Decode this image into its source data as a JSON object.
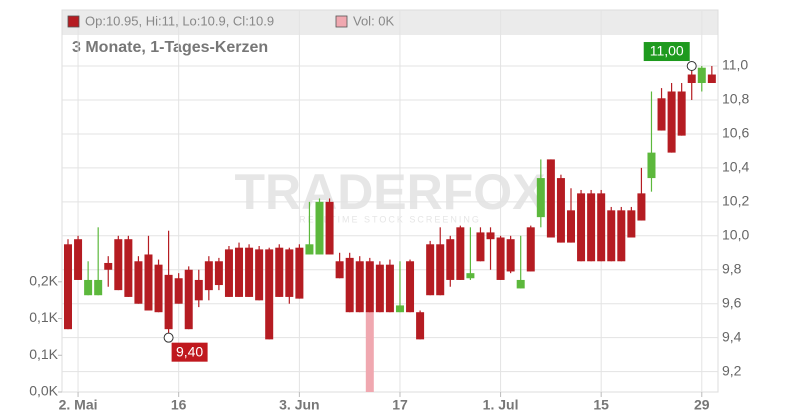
{
  "chart_data": {
    "type": "candlestick",
    "legend": [
      {
        "label": "Op:10.95, Hi:11, Lo:10.9, Cl:10.9",
        "color": "#b51c22"
      },
      {
        "label": "Vol: 0K",
        "color": "#f0a8b0"
      }
    ],
    "subtitle": "3 Monate, 1-Tages-Kerzen",
    "watermark": "TRADERFOX",
    "watermark_sub": "REALTIME STOCK SCREENING",
    "categories": [
      null,
      "2. Mai",
      null,
      null,
      null,
      null,
      null,
      null,
      null,
      null,
      null,
      "16",
      null,
      null,
      null,
      null,
      null,
      null,
      null,
      null,
      null,
      null,
      null,
      "3. Jun",
      null,
      null,
      null,
      null,
      null,
      null,
      null,
      null,
      null,
      "17",
      null,
      null,
      null,
      null,
      null,
      null,
      null,
      null,
      null,
      "1. Jul",
      null,
      null,
      null,
      null,
      null,
      null,
      null,
      null,
      null,
      "15",
      null,
      null,
      null,
      null,
      null,
      null,
      null,
      null,
      null,
      "29",
      null
    ],
    "open": [
      9.95,
      9.98,
      9.65,
      9.65,
      9.84,
      9.98,
      9.98,
      9.85,
      9.89,
      9.83,
      9.77,
      9.75,
      9.8,
      9.74,
      9.85,
      9.85,
      9.92,
      9.93,
      9.93,
      9.92,
      9.92,
      9.93,
      9.92,
      9.93,
      9.89,
      9.89,
      10.2,
      9.85,
      9.87,
      9.85,
      9.85,
      9.83,
      9.83,
      9.55,
      9.85,
      9.55,
      9.95,
      9.95,
      9.98,
      10.05,
      9.75,
      10.02,
      10.02,
      9.99,
      9.98,
      9.69,
      10.05,
      10.11,
      10.45,
      10.34,
      10.15,
      10.25,
      10.25,
      10.25,
      10.15,
      10.15,
      10.15,
      10.25,
      10.34,
      10.81,
      10.85,
      10.85,
      10.95,
      10.9,
      10.95
    ],
    "high": [
      9.98,
      10.0,
      9.85,
      10.05,
      9.88,
      10.0,
      10.0,
      9.88,
      10.0,
      9.86,
      10.03,
      9.78,
      9.82,
      9.8,
      9.88,
      9.87,
      9.94,
      9.96,
      9.95,
      9.94,
      9.93,
      9.95,
      9.93,
      9.95,
      10.2,
      10.22,
      10.22,
      9.9,
      9.9,
      9.88,
      9.87,
      9.85,
      9.86,
      9.85,
      9.86,
      9.56,
      9.97,
      10.05,
      10.0,
      10.06,
      10.05,
      10.05,
      10.05,
      10.0,
      10.0,
      10.0,
      10.06,
      10.45,
      10.45,
      10.36,
      10.28,
      10.27,
      10.27,
      10.27,
      10.17,
      10.17,
      10.17,
      10.4,
      10.85,
      10.87,
      10.9,
      10.9,
      11.0,
      11.0,
      11.0
    ],
    "low": [
      9.45,
      9.74,
      9.65,
      9.65,
      9.7,
      9.68,
      9.64,
      9.6,
      9.56,
      9.55,
      9.4,
      9.6,
      9.45,
      9.58,
      9.62,
      9.68,
      9.64,
      9.64,
      9.64,
      9.62,
      9.39,
      9.64,
      9.6,
      9.63,
      9.89,
      9.89,
      9.89,
      9.75,
      9.55,
      9.55,
      9.55,
      9.55,
      9.55,
      9.55,
      9.55,
      9.39,
      9.65,
      9.65,
      9.7,
      9.74,
      9.74,
      9.85,
      9.8,
      9.74,
      9.78,
      9.69,
      9.79,
      10.05,
      9.99,
      9.96,
      9.96,
      9.85,
      9.85,
      9.85,
      9.85,
      9.85,
      9.99,
      10.09,
      10.26,
      10.62,
      10.49,
      10.59,
      10.8,
      10.85,
      10.9
    ],
    "close": [
      9.45,
      9.74,
      9.74,
      9.74,
      9.8,
      9.68,
      9.64,
      9.6,
      9.56,
      9.55,
      9.45,
      9.6,
      9.45,
      9.62,
      9.68,
      9.71,
      9.64,
      9.64,
      9.64,
      9.62,
      9.39,
      9.64,
      9.64,
      9.63,
      9.95,
      10.2,
      9.89,
      9.75,
      9.55,
      9.55,
      9.55,
      9.55,
      9.55,
      9.59,
      9.55,
      9.39,
      9.65,
      9.65,
      9.74,
      9.74,
      9.78,
      9.85,
      9.98,
      9.74,
      9.79,
      9.74,
      9.79,
      10.34,
      9.99,
      9.96,
      9.96,
      9.85,
      9.85,
      9.85,
      9.85,
      9.85,
      9.99,
      10.09,
      10.49,
      10.62,
      10.49,
      10.59,
      10.9,
      10.99,
      10.9
    ],
    "up_color": "#5cb83c",
    "down_color": "#b51c22",
    "ylim": [
      9.08,
      11.33
    ],
    "yticks": [
      {
        "value": 9.2,
        "label": "9,2"
      },
      {
        "value": 9.4,
        "label": "9,4"
      },
      {
        "value": 9.6,
        "label": "9,6"
      },
      {
        "value": 9.8,
        "label": "9,8"
      },
      {
        "value": 10.0,
        "label": "10,0"
      },
      {
        "value": 10.2,
        "label": "10,2"
      },
      {
        "value": 10.4,
        "label": "10,4"
      },
      {
        "value": 10.6,
        "label": "10,6"
      },
      {
        "value": 10.8,
        "label": "10,8"
      },
      {
        "value": 11.0,
        "label": "11,0"
      }
    ],
    "volume": {
      "color": "#f0a8b0",
      "ylim": [
        0,
        0.52
      ],
      "yticks": [
        {
          "value": 0,
          "label": "0,0K"
        },
        {
          "value": 0.05,
          "label": "0,1K"
        },
        {
          "value": 0.1,
          "label": "0,1K"
        },
        {
          "value": 0.15,
          "label": "0,2K"
        }
      ],
      "values": [
        null,
        null,
        null,
        null,
        null,
        null,
        null,
        null,
        null,
        null,
        null,
        null,
        null,
        null,
        null,
        null,
        null,
        null,
        null,
        null,
        null,
        null,
        null,
        null,
        null,
        null,
        null,
        null,
        null,
        null,
        0.11,
        null,
        null,
        null,
        null,
        null,
        null,
        null,
        null,
        null,
        null,
        null,
        null,
        null,
        null,
        null,
        null,
        null,
        null,
        null,
        null,
        null,
        null,
        null,
        null,
        null,
        null,
        null,
        null,
        null,
        null,
        null,
        null,
        null,
        null
      ]
    },
    "annotations": [
      {
        "label": "11,00",
        "value": 11.0,
        "index": 62,
        "color": "#1e9a1e"
      },
      {
        "label": "9,40",
        "value": 9.4,
        "index": 10,
        "color": "#c0181e"
      }
    ],
    "grid": true
  }
}
